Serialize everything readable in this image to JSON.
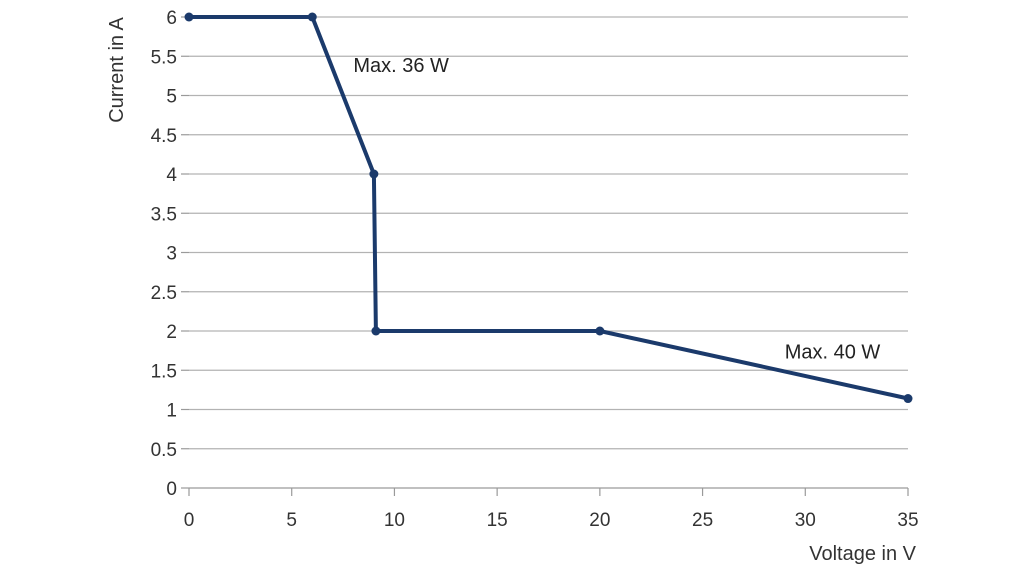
{
  "chart_data": {
    "type": "line",
    "xlabel": "Voltage in V",
    "ylabel": "Current in A",
    "xlim": [
      0,
      35
    ],
    "ylim": [
      0,
      6
    ],
    "x_ticks": [
      0,
      5,
      10,
      15,
      20,
      25,
      30,
      35
    ],
    "y_ticks": [
      0,
      0.5,
      1,
      1.5,
      2,
      2.5,
      3,
      3.5,
      4,
      4.5,
      5,
      5.5,
      6
    ],
    "grid": "horizontal",
    "series": [
      {
        "points": [
          {
            "x": 0,
            "y": 6
          },
          {
            "x": 6,
            "y": 6
          },
          {
            "x": 9,
            "y": 4
          },
          {
            "x": 9.1,
            "y": 2
          },
          {
            "x": 20,
            "y": 2
          },
          {
            "x": 35,
            "y": 1.14
          }
        ],
        "color": "#1b3a6b"
      }
    ],
    "annotations": [
      {
        "text": "Max. 36 W",
        "x": 8,
        "y": 5.3
      },
      {
        "text": "Max. 40 W",
        "x": 29,
        "y": 1.65
      }
    ]
  }
}
